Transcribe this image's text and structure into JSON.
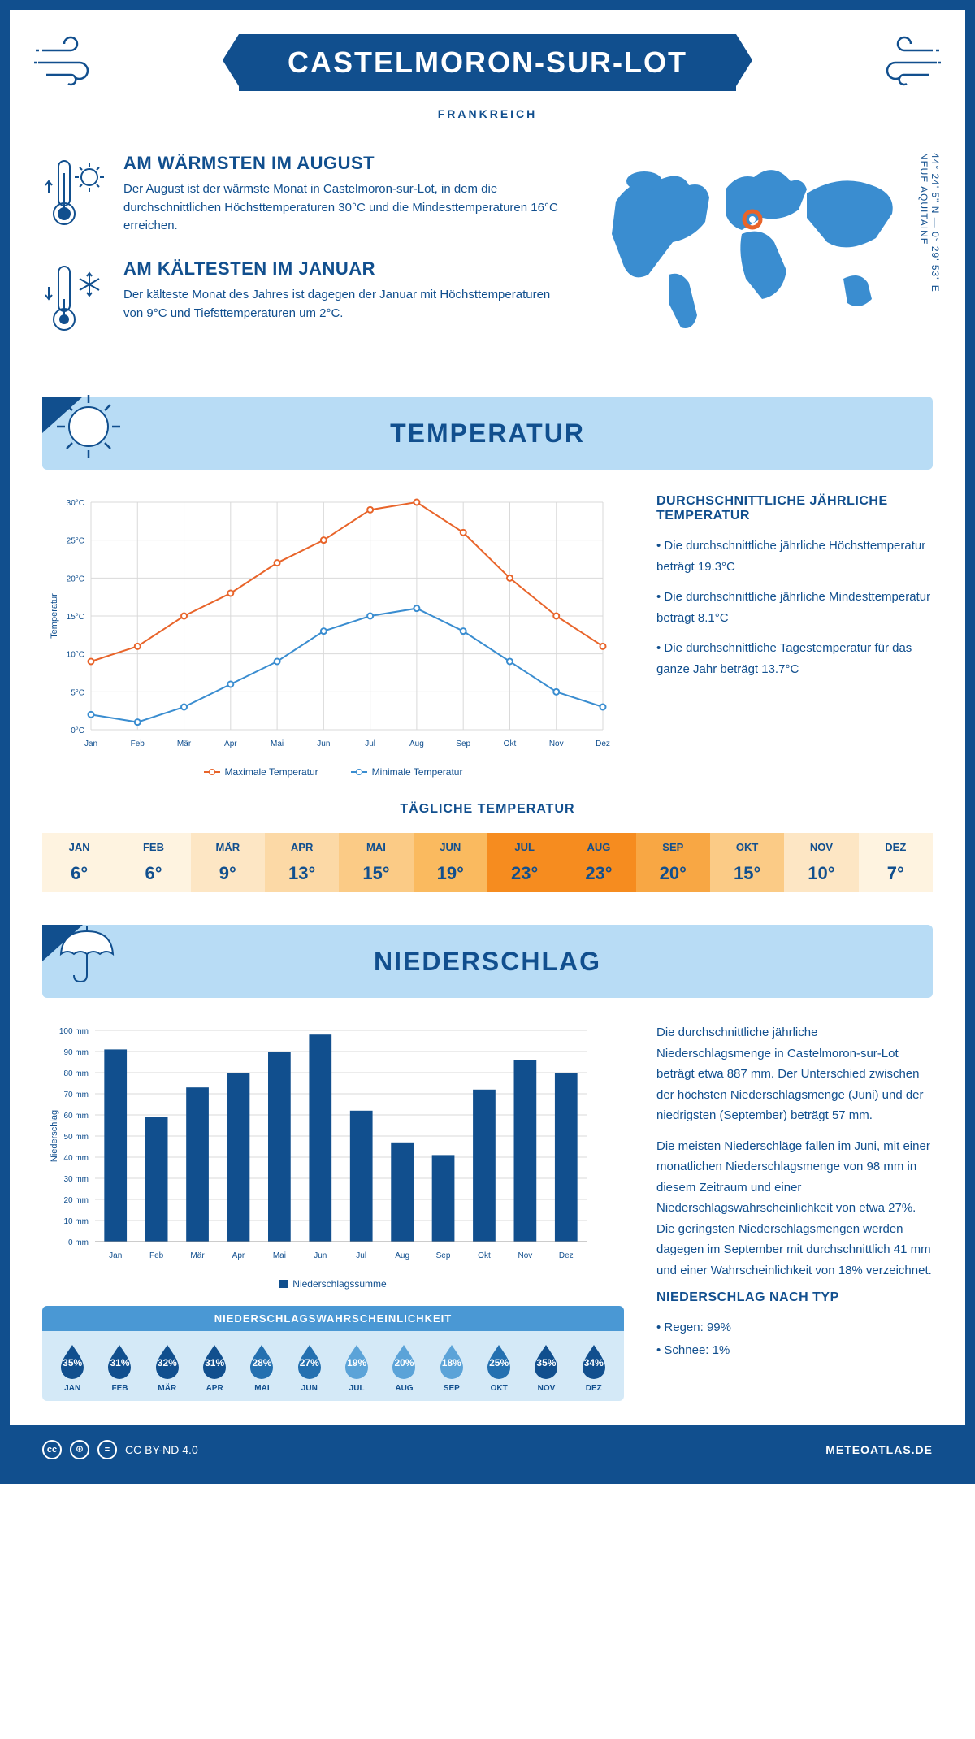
{
  "header": {
    "title": "CASTELMORON-SUR-LOT",
    "subtitle": "FRANKREICH"
  },
  "coords": {
    "lat": "44° 24' 5\" N",
    "lon": "0° 29' 53\" E",
    "region": "NEUE AQUITAINE"
  },
  "facts": {
    "warm": {
      "title": "AM WÄRMSTEN IM AUGUST",
      "text": "Der August ist der wärmste Monat in Castelmoron-sur-Lot, in dem die durchschnittlichen Höchsttemperaturen 30°C und die Mindesttemperaturen 16°C erreichen."
    },
    "cold": {
      "title": "AM KÄLTESTEN IM JANUAR",
      "text": "Der kälteste Monat des Jahres ist dagegen der Januar mit Höchsttemperaturen von 9°C und Tiefsttemperaturen um 2°C."
    }
  },
  "temp_section": {
    "heading": "TEMPERATUR",
    "info_title": "DURCHSCHNITTLICHE JÄHRLICHE TEMPERATUR",
    "bullet1": "• Die durchschnittliche jährliche Höchsttemperatur beträgt 19.3°C",
    "bullet2": "• Die durchschnittliche jährliche Mindesttemperatur beträgt 8.1°C",
    "bullet3": "• Die durchschnittliche Tagestemperatur für das ganze Jahr beträgt 13.7°C",
    "legend_max": "Maximale Temperatur",
    "legend_min": "Minimale Temperatur",
    "chart": {
      "months": [
        "Jan",
        "Feb",
        "Mär",
        "Apr",
        "Mai",
        "Jun",
        "Jul",
        "Aug",
        "Sep",
        "Okt",
        "Nov",
        "Dez"
      ],
      "max_values": [
        9,
        11,
        15,
        18,
        22,
        25,
        29,
        30,
        26,
        20,
        15,
        11
      ],
      "min_values": [
        2,
        1,
        3,
        6,
        9,
        13,
        15,
        16,
        13,
        9,
        5,
        3
      ],
      "ylim": [
        0,
        30
      ],
      "ytick_step": 5,
      "ylabel": "Temperatur",
      "max_color": "#e8642a",
      "min_color": "#3a8dd0",
      "grid_color": "#d9d9d9"
    },
    "daily_title": "TÄGLICHE TEMPERATUR",
    "daily": {
      "months": [
        "JAN",
        "FEB",
        "MÄR",
        "APR",
        "MAI",
        "JUN",
        "JUL",
        "AUG",
        "SEP",
        "OKT",
        "NOV",
        "DEZ"
      ],
      "values": [
        "6°",
        "6°",
        "9°",
        "13°",
        "15°",
        "19°",
        "23°",
        "23°",
        "20°",
        "15°",
        "10°",
        "7°"
      ],
      "bg_colors": [
        "#fef3e0",
        "#fef3e0",
        "#fde6c4",
        "#fcd9a6",
        "#fbcb86",
        "#faba5f",
        "#f68c1f",
        "#f68c1f",
        "#f8a744",
        "#fbcb86",
        "#fde6c4",
        "#fef3e0"
      ]
    }
  },
  "precip_section": {
    "heading": "NIEDERSCHLAG",
    "chart": {
      "months": [
        "Jan",
        "Feb",
        "Mär",
        "Apr",
        "Mai",
        "Jun",
        "Jul",
        "Aug",
        "Sep",
        "Okt",
        "Nov",
        "Dez"
      ],
      "values": [
        91,
        59,
        73,
        80,
        90,
        98,
        62,
        47,
        41,
        72,
        86,
        80
      ],
      "ylim": [
        0,
        100
      ],
      "ytick_step": 10,
      "ylabel": "Niederschlag",
      "bar_color": "#114f8e",
      "grid_color": "#d9d9d9"
    },
    "legend": "Niederschlagssumme",
    "text1": "Die durchschnittliche jährliche Niederschlagsmenge in Castelmoron-sur-Lot beträgt etwa 887 mm. Der Unterschied zwischen der höchsten Niederschlagsmenge (Juni) und der niedrigsten (September) beträgt 57 mm.",
    "text2": "Die meisten Niederschläge fallen im Juni, mit einer monatlichen Niederschlagsmenge von 98 mm in diesem Zeitraum und einer Niederschlagswahrscheinlichkeit von etwa 27%. Die geringsten Niederschlagsmengen werden dagegen im September mit durchschnittlich 41 mm und einer Wahrscheinlichkeit von 18% verzeichnet.",
    "type_title": "NIEDERSCHLAG NACH TYP",
    "type1": "• Regen: 99%",
    "type2": "• Schnee: 1%",
    "prob_title": "NIEDERSCHLAGSWAHRSCHEINLICHKEIT",
    "prob": {
      "months": [
        "JAN",
        "FEB",
        "MÄR",
        "APR",
        "MAI",
        "JUN",
        "JUL",
        "AUG",
        "SEP",
        "OKT",
        "NOV",
        "DEZ"
      ],
      "values": [
        "35%",
        "31%",
        "32%",
        "31%",
        "28%",
        "27%",
        "19%",
        "20%",
        "18%",
        "25%",
        "35%",
        "34%"
      ],
      "colors": [
        "#114f8e",
        "#114f8e",
        "#114f8e",
        "#114f8e",
        "#2470b0",
        "#2470b0",
        "#5ba3d8",
        "#5ba3d8",
        "#5ba3d8",
        "#2470b0",
        "#114f8e",
        "#114f8e"
      ]
    }
  },
  "footer": {
    "license": "CC BY-ND 4.0",
    "site": "METEOATLAS.DE"
  },
  "colors": {
    "primary": "#114f8e",
    "light_blue": "#b8dcf5",
    "marker": "#e8642a"
  }
}
